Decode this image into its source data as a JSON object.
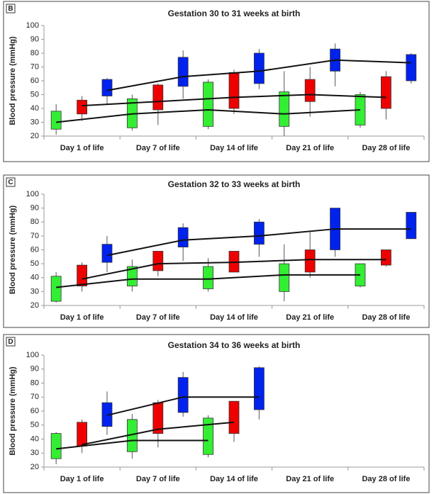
{
  "chart_data": [
    {
      "type": "box",
      "label": "B",
      "title": "Gestation 30 to 31 weeks at birth",
      "ylabel": "Blood pressure (mmHg)",
      "categories": [
        "Day 1 of life",
        "Day 7 of life",
        "Day 14 of life",
        "Day 21 of life",
        "Day 28 of life"
      ],
      "ylim": [
        20,
        100
      ],
      "yticks": [
        20,
        30,
        40,
        50,
        60,
        70,
        80,
        90,
        100
      ],
      "series": [
        {
          "color": "#33ee33",
          "values": [
            30,
            36,
            39,
            36,
            39
          ],
          "low": [
            25,
            26,
            27,
            27,
            28
          ],
          "high": [
            38,
            47,
            59,
            52,
            50
          ],
          "min": [
            21,
            24,
            25,
            20,
            26
          ],
          "max": [
            43,
            50,
            61,
            67,
            52
          ]
        },
        {
          "color": "#ee0000",
          "values": [
            42,
            45,
            48,
            50,
            48
          ],
          "low": [
            36,
            39,
            40,
            45,
            40
          ],
          "high": [
            46,
            57,
            66,
            61,
            63
          ],
          "min": [
            31,
            28,
            36,
            34,
            32
          ],
          "max": [
            49,
            58,
            68,
            70,
            67
          ]
        },
        {
          "color": "#0022ee",
          "values": [
            53,
            63,
            67,
            75,
            73
          ],
          "low": [
            49,
            56,
            58,
            67,
            60
          ],
          "high": [
            61,
            77,
            80,
            83,
            79
          ],
          "min": [
            43,
            47,
            54,
            56,
            58
          ],
          "max": [
            62,
            82,
            83,
            87,
            80
          ]
        }
      ]
    },
    {
      "type": "box",
      "label": "C",
      "title": "Gestation 32 to 33 weeks at birth",
      "ylabel": "Blood pressure (mmHg)",
      "categories": [
        "Day 1 of life",
        "Day 7 of life",
        "Day 14 of life",
        "Day 21 of life",
        "Day 28 of life"
      ],
      "ylim": [
        20,
        100
      ],
      "yticks": [
        20,
        30,
        40,
        50,
        60,
        70,
        80,
        90,
        100
      ],
      "series": [
        {
          "color": "#33ee33",
          "values": [
            33,
            39,
            39,
            42,
            42
          ],
          "low": [
            23,
            34,
            32,
            30,
            34
          ],
          "high": [
            41,
            48,
            48,
            50,
            50
          ],
          "min": [
            22,
            30,
            30,
            23,
            33
          ],
          "max": [
            44,
            53,
            54,
            64,
            50
          ]
        },
        {
          "color": "#ee0000",
          "values": [
            39,
            50,
            51,
            53,
            53
          ],
          "low": [
            34,
            45,
            44,
            44,
            49
          ],
          "high": [
            49,
            59,
            59,
            60,
            60
          ],
          "min": [
            30,
            41,
            44,
            40,
            48
          ],
          "max": [
            51,
            59,
            59,
            73,
            60
          ]
        },
        {
          "color": "#0022ee",
          "values": [
            56,
            67,
            70,
            75,
            75
          ],
          "low": [
            51,
            62,
            64,
            60,
            68
          ],
          "high": [
            64,
            76,
            80,
            90,
            87
          ],
          "min": [
            44,
            52,
            55,
            55,
            68
          ],
          "max": [
            70,
            79,
            82,
            90,
            87
          ]
        }
      ]
    },
    {
      "type": "box",
      "label": "D",
      "title": "Gestation 34 to 36 weeks at birth",
      "ylabel": "Blood pressure (mmHg)",
      "categories": [
        "Day 1 of life",
        "Day 7 of life",
        "Day 14 of life",
        "Day 21 of life",
        "Day 28 of life"
      ],
      "ylim": [
        20,
        100
      ],
      "yticks": [
        20,
        30,
        40,
        50,
        60,
        70,
        80,
        90,
        100
      ],
      "series": [
        {
          "color": "#33ee33",
          "values": [
            33,
            39,
            39,
            null,
            null
          ],
          "low": [
            26,
            31,
            29,
            null,
            null
          ],
          "high": [
            44,
            54,
            55,
            null,
            null
          ],
          "min": [
            22,
            26,
            27,
            null,
            null
          ],
          "max": [
            45,
            58,
            57,
            null,
            null
          ]
        },
        {
          "color": "#ee0000",
          "values": [
            36,
            47,
            52,
            null,
            null
          ],
          "low": [
            35,
            44,
            44,
            null,
            null
          ],
          "high": [
            52,
            66,
            67,
            null,
            null
          ],
          "min": [
            30,
            34,
            38,
            null,
            null
          ],
          "max": [
            54,
            68,
            67,
            null,
            null
          ]
        },
        {
          "color": "#0022ee",
          "values": [
            57,
            70,
            70,
            null,
            null
          ],
          "low": [
            49,
            59,
            61,
            null,
            null
          ],
          "high": [
            66,
            84,
            91,
            null,
            null
          ],
          "min": [
            43,
            56,
            54,
            null,
            null
          ],
          "max": [
            74,
            88,
            92,
            null,
            null
          ]
        }
      ]
    }
  ]
}
